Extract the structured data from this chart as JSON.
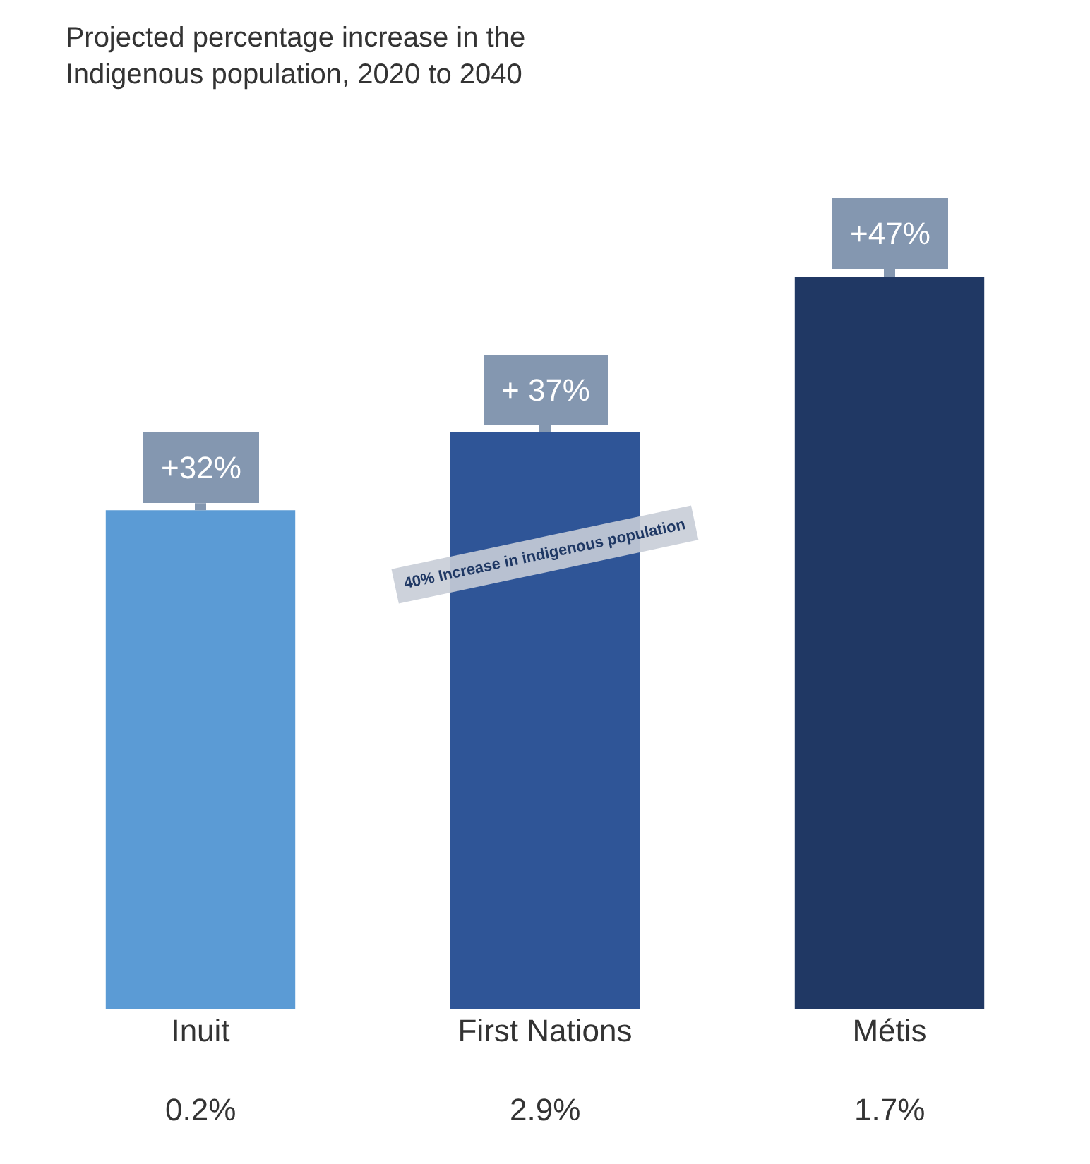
{
  "chart_data": {
    "type": "bar",
    "title": "Projected percentage increase in the\nIndigenous population, 2020 to 2040",
    "categories": [
      "Inuit",
      "First Nations",
      "Métis"
    ],
    "values": [
      32,
      37,
      47
    ],
    "colors": [
      "#5b9bd5",
      "#2f5597",
      "#203864"
    ],
    "value_labels": [
      "+32%",
      "+ 37%",
      "+47%"
    ],
    "annotations": [
      "40% Increase in indigenous population",
      "0.2%",
      "2.9%",
      "1.7%"
    ]
  }
}
